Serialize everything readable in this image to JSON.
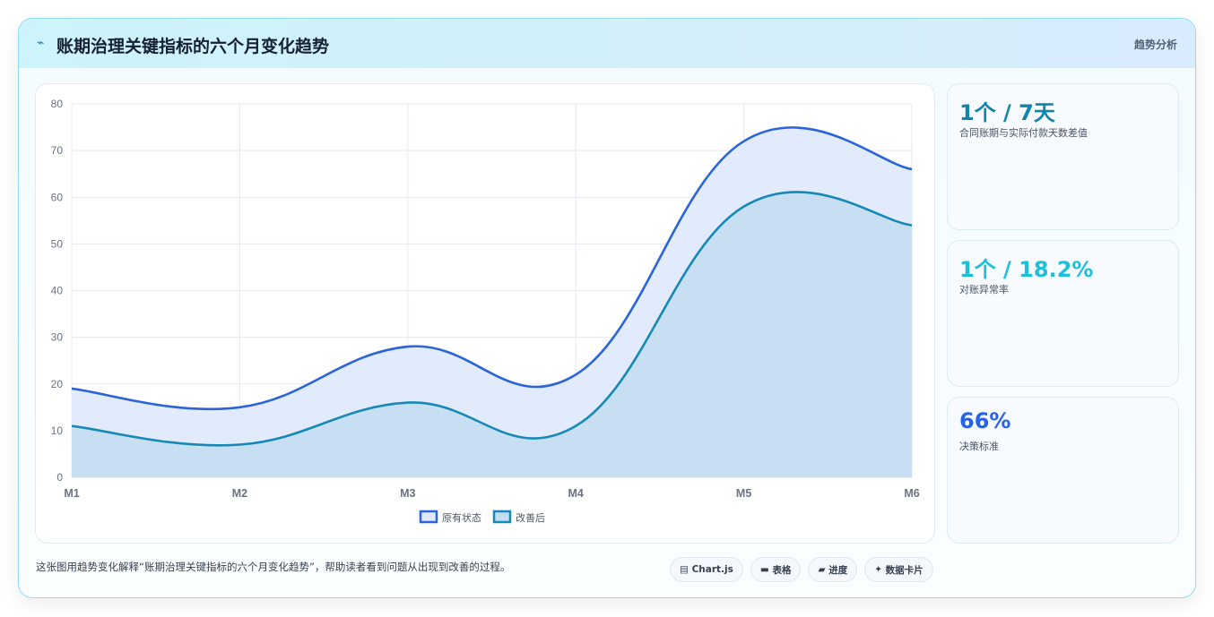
{
  "header": {
    "icon": "sparkline-icon",
    "title": "账期治理关键指标的六个月变化趋势",
    "tag": "趋势分析"
  },
  "chart_data": {
    "type": "area",
    "categories": [
      "M1",
      "M2",
      "M3",
      "M4",
      "M5",
      "M6"
    ],
    "series": [
      {
        "name": "原有状态",
        "values": [
          19,
          15,
          28,
          22,
          72,
          66
        ],
        "color": "#2b63d9",
        "fill": "#dfe9fb"
      },
      {
        "name": "改善后",
        "values": [
          11,
          7,
          16,
          11,
          58,
          54
        ],
        "color": "#1689b5",
        "fill": "#c5ddf2"
      }
    ],
    "ylim": [
      0,
      80
    ],
    "yticks": [
      0,
      10,
      20,
      30,
      40,
      50,
      60,
      70,
      80
    ],
    "grid": true,
    "legend": "bottom"
  },
  "kpis": [
    {
      "value": "1个 / 7天",
      "label": "合同账期与实际付款天数差值",
      "color": "#0f86a8"
    },
    {
      "value": "1个 / 18.2%",
      "label": "对账异常率",
      "color": "#1ec0d8"
    },
    {
      "value": "66%",
      "label": "决策标准",
      "color": "#2563eb"
    }
  ],
  "footer": {
    "caption": "这张图用趋势变化解释“账期治理关键指标的六个月变化趋势”，帮助读者看到问题从出现到改善的过程。",
    "chips": [
      {
        "icon": "▤",
        "label": "Chart.js"
      },
      {
        "icon": "▬",
        "label": "表格"
      },
      {
        "icon": "▰",
        "label": "进度"
      },
      {
        "icon": "✦",
        "label": "数据卡片"
      }
    ]
  }
}
